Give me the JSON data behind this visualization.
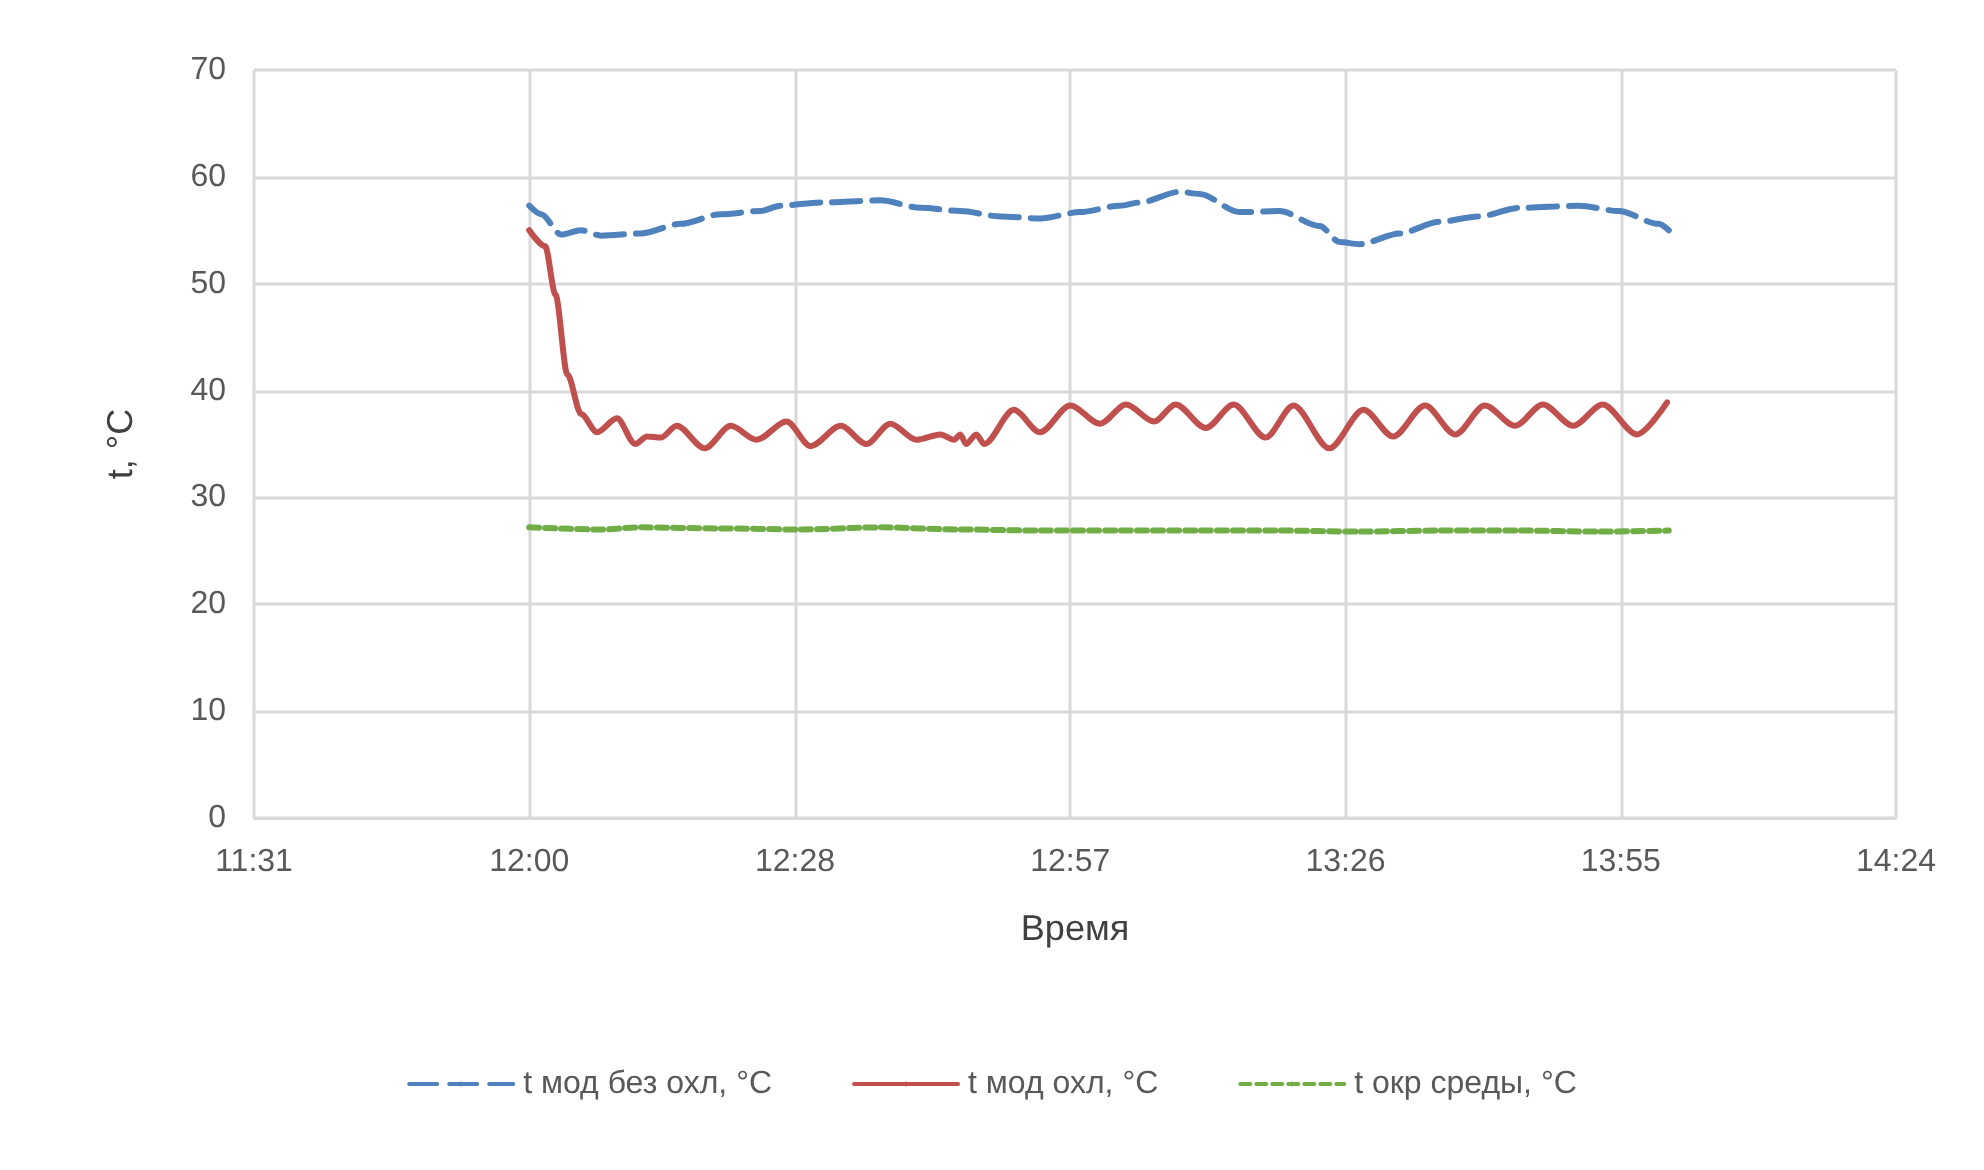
{
  "chart_data": {
    "type": "line",
    "xlabel": "Время",
    "ylabel": "t, °C",
    "xlim": [
      11.5167,
      14.4
    ],
    "xticks": [
      {
        "value": 11.5167,
        "label": "11:31"
      },
      {
        "value": 12.0,
        "label": "12:00"
      },
      {
        "value": 12.4667,
        "label": "12:28"
      },
      {
        "value": 12.95,
        "label": "12:57"
      },
      {
        "value": 13.4333,
        "label": "13:26"
      },
      {
        "value": 13.9167,
        "label": "13:55"
      },
      {
        "value": 14.4,
        "label": "14:24"
      }
    ],
    "ylim": [
      0,
      70
    ],
    "yticks": [
      0,
      10,
      20,
      30,
      40,
      50,
      60,
      70
    ],
    "grid": true,
    "legend": "bottom",
    "marker": "none",
    "series": [
      {
        "name": "t мод без охл, °C",
        "color": "#4f81bd",
        "line_style": "dashed",
        "x": [
          12.0,
          12.021,
          12.056,
          12.091,
          12.126,
          12.196,
          12.266,
          12.336,
          12.406,
          12.441,
          12.512,
          12.617,
          12.687,
          12.757,
          12.827,
          12.897,
          12.967,
          13.037,
          13.072,
          13.142,
          13.177,
          13.247,
          13.317,
          13.388,
          13.423,
          13.458,
          13.528,
          13.598,
          13.668,
          13.738,
          13.843,
          13.913,
          13.983,
          14.001
        ],
        "values": [
          57.3,
          56.5,
          54.6,
          55.0,
          54.5,
          54.7,
          55.6,
          56.5,
          56.8,
          57.3,
          57.6,
          57.8,
          57.1,
          56.8,
          56.3,
          56.1,
          56.7,
          57.3,
          57.6,
          58.6,
          58.4,
          56.7,
          56.8,
          55.4,
          53.9,
          53.7,
          54.7,
          55.8,
          56.3,
          57.1,
          57.3,
          56.8,
          55.6,
          55.0
        ]
      },
      {
        "name": "t мод охл, °C",
        "color": "#c0504d",
        "line_style": "solid",
        "x": [
          12.0,
          12.028,
          12.046,
          12.067,
          12.091,
          12.119,
          12.154,
          12.186,
          12.207,
          12.231,
          12.259,
          12.308,
          12.354,
          12.399,
          12.452,
          12.494,
          12.547,
          12.592,
          12.634,
          12.68,
          12.722,
          12.746,
          12.757,
          12.767,
          12.785,
          12.799,
          12.851,
          12.897,
          12.95,
          13.002,
          13.048,
          13.097,
          13.135,
          13.188,
          13.237,
          13.293,
          13.342,
          13.405,
          13.465,
          13.517,
          13.573,
          13.626,
          13.678,
          13.731,
          13.78,
          13.833,
          13.885,
          13.945,
          13.998
        ],
        "values": [
          55.0,
          53.5,
          49.0,
          41.5,
          37.8,
          36.1,
          37.4,
          35.0,
          35.7,
          35.6,
          36.7,
          34.6,
          36.7,
          35.4,
          37.1,
          34.8,
          36.7,
          35.0,
          36.9,
          35.4,
          35.9,
          35.4,
          35.9,
          35.0,
          35.9,
          35.0,
          38.2,
          36.1,
          38.6,
          36.9,
          38.7,
          37.1,
          38.7,
          36.5,
          38.7,
          35.6,
          38.6,
          34.6,
          38.2,
          35.7,
          38.6,
          35.9,
          38.6,
          36.7,
          38.7,
          36.7,
          38.7,
          35.9,
          38.9
        ]
      },
      {
        "name": "t окр среды, °C",
        "color": "#70ad47",
        "line_style": "dotted",
        "x": [
          12.0,
          12.126,
          12.196,
          12.336,
          12.476,
          12.617,
          12.757,
          12.897,
          13.037,
          13.177,
          13.317,
          13.458,
          13.598,
          13.738,
          13.878,
          14.001
        ],
        "values": [
          27.2,
          27.0,
          27.2,
          27.1,
          27.0,
          27.2,
          27.0,
          26.9,
          26.9,
          26.9,
          26.9,
          26.8,
          26.9,
          26.9,
          26.8,
          26.9
        ]
      }
    ]
  }
}
